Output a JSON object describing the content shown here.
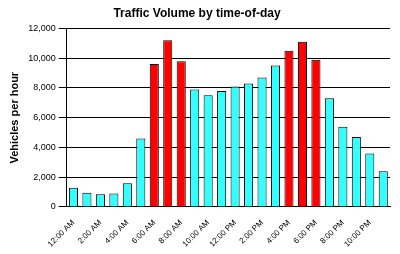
{
  "chart_data": {
    "type": "bar",
    "title": "Traffic Volume by time-of-day",
    "y_label": "Vehicles per hour",
    "categories": [
      "12:00 AM",
      null,
      "2:00 AM",
      null,
      "4:00 AM",
      null,
      "6:00 AM",
      null,
      "8:00 AM",
      null,
      "10:00 AM",
      null,
      "12:00 PM",
      null,
      "2:00 PM",
      null,
      "4:00 PM",
      null,
      "6:00 PM",
      null,
      "8:00 PM",
      null,
      "10:00 PM",
      null
    ],
    "values": [
      1300,
      950,
      850,
      900,
      1600,
      4600,
      9600,
      11200,
      9800,
      7900,
      7500,
      7800,
      8100,
      8300,
      8700,
      9500,
      10500,
      11100,
      9900,
      7300,
      5400,
      4700,
      3600,
      2400
    ],
    "colors": [
      "#33ffff",
      "#33ffff",
      "#33ffff",
      "#33ffff",
      "#33ffff",
      "#33ffff",
      "#ff0000",
      "#ff0000",
      "#ff0000",
      "#33ffff",
      "#33ffff",
      "#33ffff",
      "#33ffff",
      "#33ffff",
      "#33ffff",
      "#33ffff",
      "#ff0000",
      "#ff0000",
      "#ff0000",
      "#33ffff",
      "#33ffff",
      "#33ffff",
      "#33ffff",
      "#33ffff"
    ],
    "ylim": [
      0,
      12000
    ],
    "yticks": [
      0,
      {
        "value": 2000,
        "label": "2,000"
      },
      {
        "value": 4000,
        "label": "4,000"
      },
      {
        "value": 6000,
        "label": "6,000"
      },
      {
        "value": 8000,
        "label": "8,000"
      },
      {
        "value": 10000,
        "label": "10,000"
      },
      {
        "value": 12000,
        "label": "12,000"
      }
    ],
    "grid": true
  }
}
